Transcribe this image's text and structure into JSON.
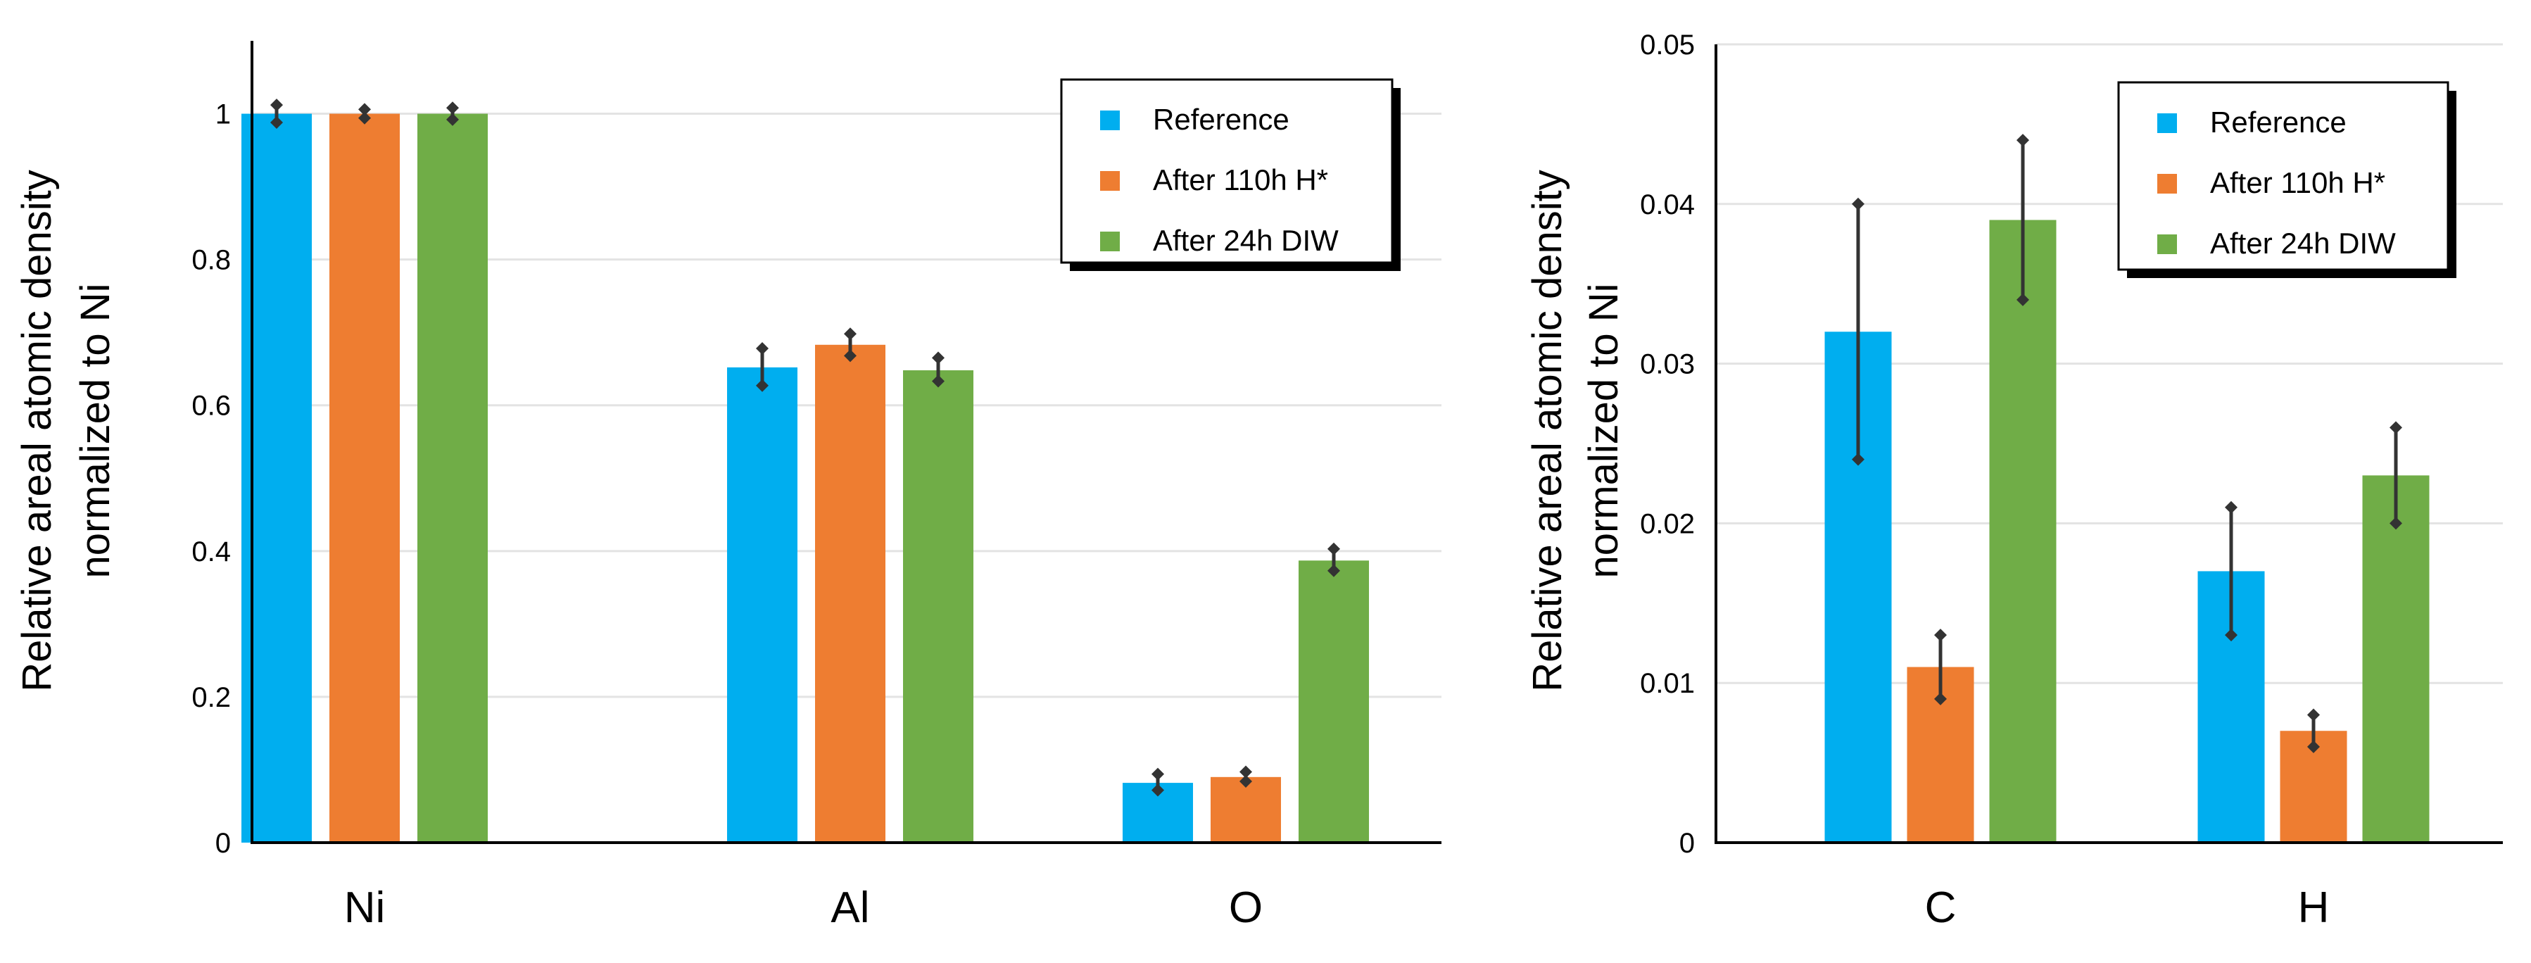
{
  "colors": {
    "reference": "#00aeef",
    "h": "#ee7d31",
    "diw": "#70ad47"
  },
  "chart_data": [
    {
      "type": "bar",
      "title": "",
      "xlabel": "",
      "ylabel": [
        "Relative areal atomic density",
        "normalized to Ni"
      ],
      "ylim": [
        0,
        1.1
      ],
      "yticks": [
        0,
        0.2,
        0.4,
        0.6,
        0.8,
        1
      ],
      "ytick_labels": [
        "0",
        "0.2",
        "0.4",
        "0.6",
        "0.8",
        "1"
      ],
      "grid": true,
      "legend_position": "top-right",
      "categories": [
        "Ni",
        "Al",
        "O"
      ],
      "series": [
        {
          "name": "Reference",
          "color": "#00aeef",
          "values": [
            1.0,
            0.652,
            0.082
          ],
          "err_low": [
            0.988,
            0.627,
            0.072
          ],
          "err_high": [
            1.012,
            0.678,
            0.094
          ]
        },
        {
          "name": "After 110h H*",
          "color": "#ee7d31",
          "values": [
            1.0,
            0.683,
            0.09
          ],
          "err_low": [
            0.994,
            0.668,
            0.084
          ],
          "err_high": [
            1.006,
            0.698,
            0.097
          ]
        },
        {
          "name": "After 24h DIW",
          "color": "#70ad47",
          "values": [
            1.0,
            0.648,
            0.387
          ],
          "err_low": [
            0.992,
            0.633,
            0.373
          ],
          "err_high": [
            1.008,
            0.665,
            0.403
          ]
        }
      ]
    },
    {
      "type": "bar",
      "title": "",
      "xlabel": "",
      "ylabel": [
        "Relative areal atomic density",
        "normalized to Ni"
      ],
      "ylim": [
        0,
        0.05
      ],
      "yticks": [
        0,
        0.01,
        0.02,
        0.03,
        0.04,
        0.05
      ],
      "ytick_labels": [
        "0",
        "0.01",
        "0.02",
        "0.03",
        "0.04",
        "0.05"
      ],
      "grid": true,
      "legend_position": "top-right",
      "categories": [
        "C",
        "H"
      ],
      "series": [
        {
          "name": "Reference",
          "color": "#00aeef",
          "values": [
            0.032,
            0.017
          ],
          "err_low": [
            0.024,
            0.013
          ],
          "err_high": [
            0.04,
            0.021
          ]
        },
        {
          "name": "After 110h H*",
          "color": "#ee7d31",
          "values": [
            0.011,
            0.007
          ],
          "err_low": [
            0.009,
            0.006
          ],
          "err_high": [
            0.013,
            0.008
          ]
        },
        {
          "name": "After 24h DIW",
          "color": "#70ad47",
          "values": [
            0.039,
            0.023
          ],
          "err_low": [
            0.034,
            0.02
          ],
          "err_high": [
            0.044,
            0.026
          ]
        }
      ]
    }
  ]
}
